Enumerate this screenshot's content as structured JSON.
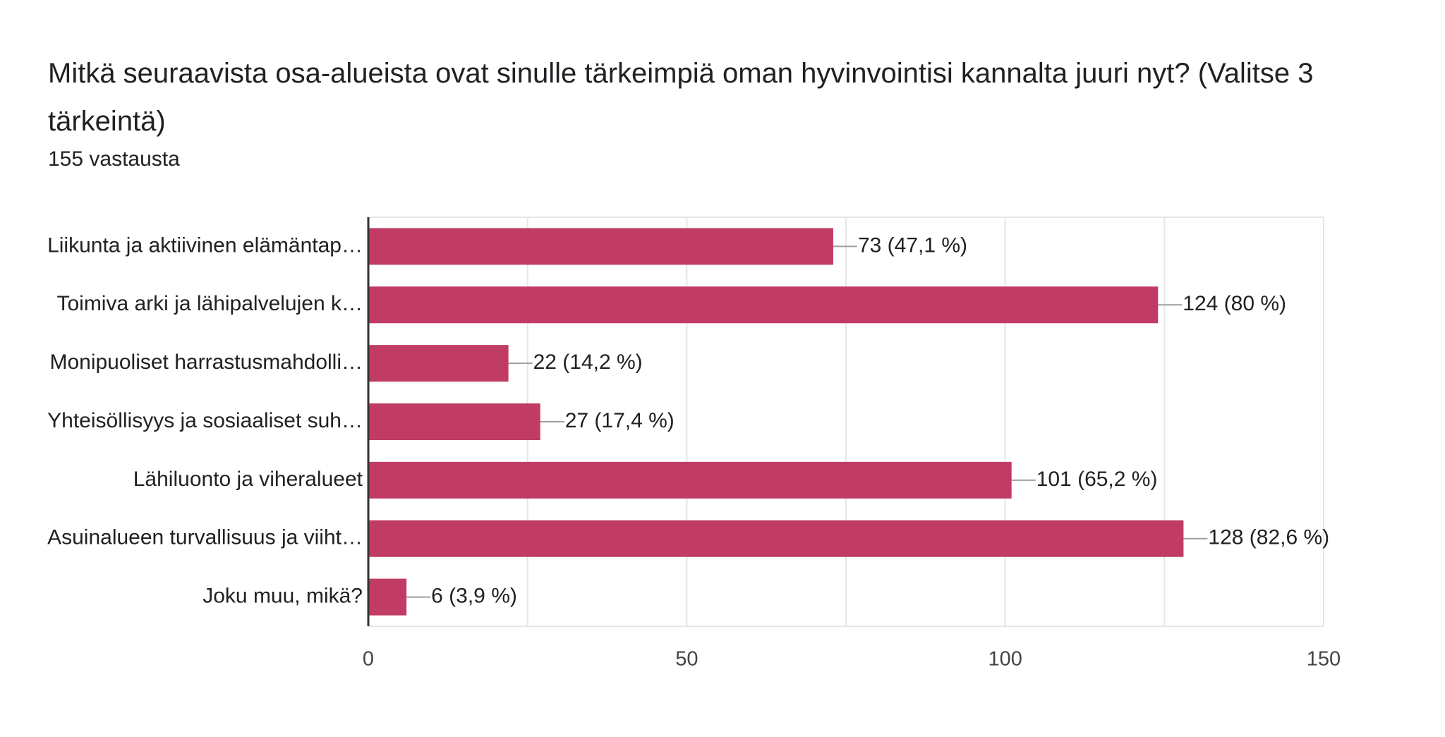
{
  "header": {
    "title": "Mitkä seuraavista osa-alueista ovat sinulle tärkeimpiä oman hyvinvointisi kannalta juuri nyt? (Valitse 3 tärkeintä)",
    "responses": "155 vastausta"
  },
  "colors": {
    "bar": "#c03c64",
    "grid": "#e6e6e6",
    "axis": "#333333",
    "leader": "#9e9e9e"
  },
  "chart_data": {
    "type": "bar",
    "orientation": "horizontal",
    "title": "Mitkä seuraavista osa-alueista ovat sinulle tärkeimpiä oman hyvinvointisi kannalta juuri nyt? (Valitse 3 tärkeintä)",
    "subtitle": "155 vastausta",
    "xlabel": "",
    "ylabel": "",
    "categories": [
      "Liikunta ja aktiivinen elämäntap…",
      "Toimiva arki ja lähipalvelujen k…",
      "Monipuoliset harrastusmahdolli…",
      "Yhteisöllisyys ja sosiaaliset suh…",
      "Lähiluonto ja viheralueet",
      "Asuinalueen turvallisuus ja viiht…",
      "Joku muu, mikä?"
    ],
    "values": [
      73,
      124,
      22,
      27,
      101,
      128,
      6
    ],
    "data_labels": [
      "73 (47,1 %)",
      "124 (80 %)",
      "22 (14,2 %)",
      "27 (17,4 %)",
      "101 (65,2 %)",
      "128 (82,6 %)",
      "6 (3,9 %)"
    ],
    "xlim": [
      0,
      150
    ],
    "ticks": [
      0,
      50,
      100,
      150
    ],
    "tick_labels": [
      "0",
      "50",
      "100",
      "150"
    ],
    "grid": true,
    "legend": "none"
  }
}
